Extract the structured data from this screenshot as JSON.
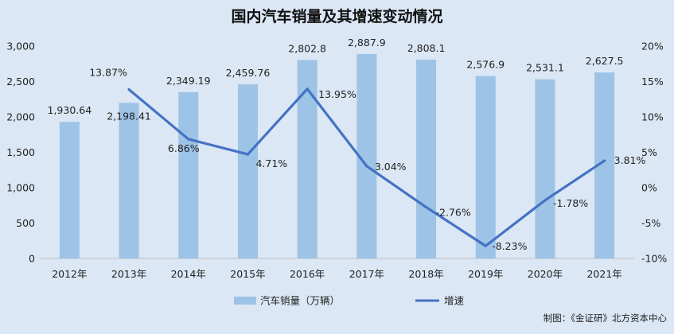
{
  "chart_data": {
    "type": "bar+line",
    "title": "国内汽车销量及其增速变动情况",
    "categories": [
      "2012年",
      "2013年",
      "2014年",
      "2015年",
      "2016年",
      "2017年",
      "2018年",
      "2019年",
      "2020年",
      "2021年"
    ],
    "series": [
      {
        "name": "汽车销量（万辆）",
        "type": "bar",
        "axis": "left",
        "values": [
          1930.64,
          2198.41,
          2349.19,
          2459.76,
          2802.8,
          2887.9,
          2808.1,
          2576.9,
          2531.1,
          2627.5
        ],
        "labels": [
          "1,930.64",
          "2,198.41",
          "2,349.19",
          "2,459.76",
          "2,802.8",
          "2,887.9",
          "2,808.1",
          "2,576.9",
          "2,531.1",
          "2,627.5"
        ],
        "color": "#9dc3e6"
      },
      {
        "name": "增速",
        "type": "line",
        "axis": "right",
        "values": [
          null,
          13.87,
          6.86,
          4.71,
          13.95,
          3.04,
          -2.76,
          -8.23,
          -1.78,
          3.81
        ],
        "labels": [
          "",
          "13.87%",
          "6.86%",
          "4.71%",
          "13.95%",
          "3.04%",
          "-2.76%",
          "-8.23%",
          "-1.78%",
          "3.81%"
        ],
        "color": "#4472c4"
      }
    ],
    "y_left": {
      "min": 0,
      "max": 3000,
      "ticks": [
        "0",
        "500",
        "1,000",
        "1,500",
        "2,000",
        "2,500",
        "3,000"
      ]
    },
    "y_right": {
      "min": -10,
      "max": 20,
      "ticks": [
        "-10%",
        "-5%",
        "0%",
        "5%",
        "10%",
        "15%",
        "20%"
      ]
    },
    "grid": false,
    "legend_position": "bottom",
    "source": "制图：《金证研》北方资本中心"
  }
}
